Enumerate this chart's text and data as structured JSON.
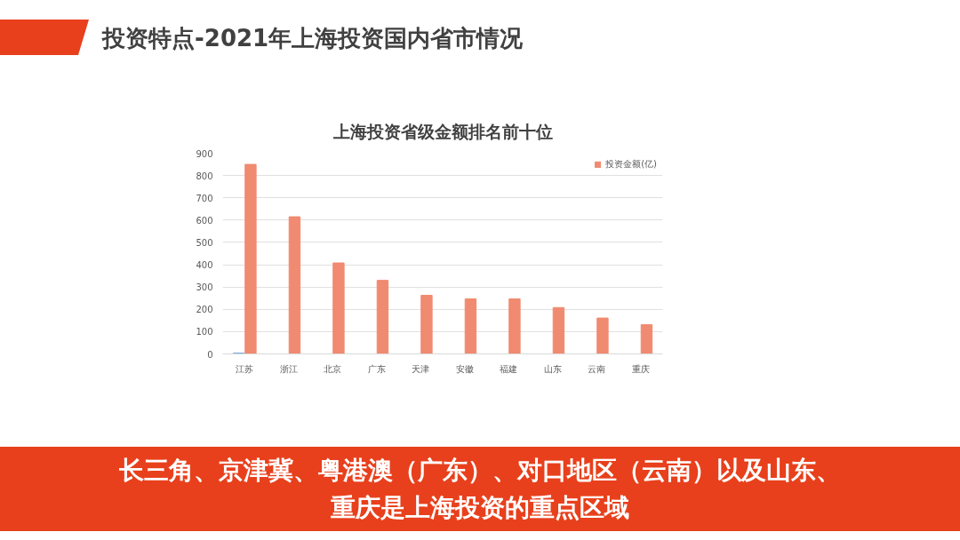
{
  "chart_data": {
    "type": "bar",
    "title": "上海投资省级金额排名前十位",
    "categories": [
      "江苏",
      "浙江",
      "北京",
      "广东",
      "天津",
      "安徽",
      "福建",
      "山东",
      "云南",
      "重庆"
    ],
    "series": [
      {
        "color": "#5b9bd5",
        "values": [
          3,
          null,
          null,
          null,
          null,
          null,
          null,
          null,
          null,
          null
        ]
      },
      {
        "name": "投资金额(亿)",
        "color": "#f08a70",
        "values": [
          850,
          615,
          408,
          330,
          263,
          247,
          247,
          208,
          161,
          131
        ]
      }
    ],
    "ylim": [
      0,
      900
    ],
    "yticks": [
      0,
      100,
      200,
      300,
      400,
      500,
      600,
      700,
      800,
      900
    ],
    "grid": "y",
    "legend": "top right",
    "annotations": [
      "投资特点-2021年上海投资国内省市情况",
      "长三角、京津冀、粤港澳（广东）、对口地区（云南）以及山东、",
      "重庆是上海投资的重点区域"
    ]
  }
}
